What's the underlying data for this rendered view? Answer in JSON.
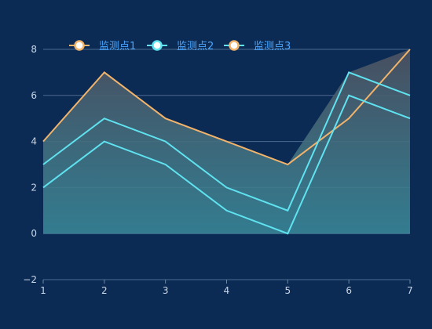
{
  "chart_data": {
    "type": "line",
    "x": [
      1,
      2,
      3,
      4,
      5,
      6,
      7
    ],
    "xticks": [
      "1",
      "2",
      "3",
      "4",
      "5",
      "6",
      "7"
    ],
    "ylim": [
      -2,
      8
    ],
    "yticks": [
      "−2",
      "0",
      "2",
      "4",
      "6",
      "8"
    ],
    "yticks_values": [
      -2,
      0,
      2,
      4,
      6,
      8
    ],
    "grid": true,
    "legend_position": "top-left",
    "series": [
      {
        "name": "监测点1",
        "values": [
          4,
          7,
          5,
          4,
          3,
          5,
          8
        ],
        "color": "#f2b36a",
        "marker_color": "#f2b36a"
      },
      {
        "name": "监测点2",
        "values": [
          3,
          5,
          4,
          2,
          1,
          7,
          6
        ],
        "color": "#5fe3f0",
        "marker_color": "#5fe3f0"
      },
      {
        "name": "监测点3",
        "values": [
          2,
          4,
          3,
          1,
          0,
          6,
          5
        ],
        "color": "#5fe3f0",
        "marker_color": "#f2b36a"
      }
    ],
    "colors": {
      "background": "#0b2b55",
      "grid": "#6a88a8",
      "area_top": "#4a5060",
      "area_bottom": "#3b8a9a"
    }
  }
}
